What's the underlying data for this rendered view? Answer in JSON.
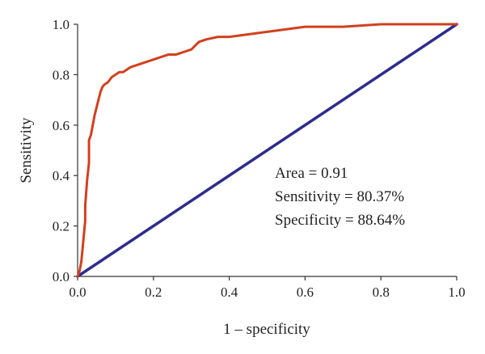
{
  "chart_data": {
    "type": "line",
    "xlabel": "1 – specificity",
    "ylabel": "Sensitivity",
    "xlim": [
      0,
      1
    ],
    "ylim": [
      0,
      1
    ],
    "x_ticks": [
      "0.0",
      "0.2",
      "0.4",
      "0.6",
      "0.8",
      "1.0"
    ],
    "y_ticks": [
      "0.0",
      "0.2",
      "0.4",
      "0.6",
      "0.8",
      "1.0"
    ],
    "grid": false,
    "annotations": [
      "Area = 0.91",
      "Sensitivity = 80.37%",
      "Specificity = 88.64%"
    ],
    "series": [
      {
        "color": "#D2401E",
        "x": [
          0,
          0.005,
          0.01,
          0.015,
          0.02,
          0.02,
          0.025,
          0.03,
          0.03,
          0.035,
          0.04,
          0.045,
          0.05,
          0.055,
          0.06,
          0.065,
          0.07,
          0.08,
          0.09,
          0.1,
          0.11,
          0.12,
          0.14,
          0.16,
          0.18,
          0.2,
          0.22,
          0.24,
          0.26,
          0.28,
          0.3,
          0.32,
          0.34,
          0.37,
          0.4,
          0.45,
          0.5,
          0.55,
          0.6,
          0.7,
          0.8,
          0.9,
          1.0
        ],
        "y": [
          0,
          0.02,
          0.06,
          0.14,
          0.22,
          0.28,
          0.38,
          0.45,
          0.54,
          0.56,
          0.6,
          0.64,
          0.67,
          0.7,
          0.73,
          0.75,
          0.76,
          0.77,
          0.79,
          0.8,
          0.81,
          0.81,
          0.83,
          0.84,
          0.85,
          0.86,
          0.87,
          0.88,
          0.88,
          0.89,
          0.9,
          0.93,
          0.94,
          0.95,
          0.95,
          0.96,
          0.97,
          0.98,
          0.99,
          0.99,
          1.0,
          1.0,
          1.0
        ]
      },
      {
        "color": "#2E2C8C",
        "x": [
          0,
          1
        ],
        "y": [
          0,
          1
        ]
      }
    ]
  }
}
